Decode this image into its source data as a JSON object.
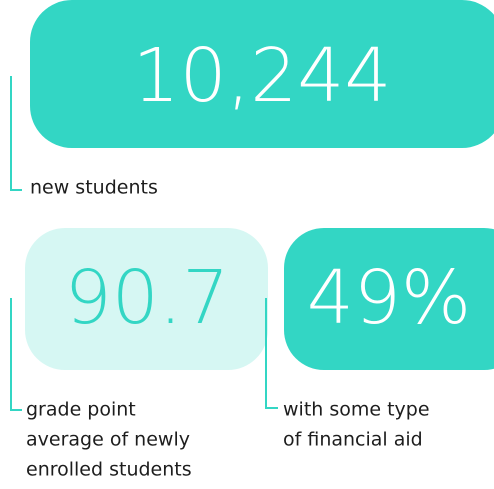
{
  "stats": [
    {
      "value": "10,244",
      "label_lines": [
        "new students"
      ]
    },
    {
      "value": "90.7",
      "label_lines": [
        "grade point",
        "average of newly",
        "enrolled students"
      ]
    },
    {
      "value": "49%",
      "label_lines": [
        "with some type",
        "of financial aid"
      ]
    }
  ]
}
